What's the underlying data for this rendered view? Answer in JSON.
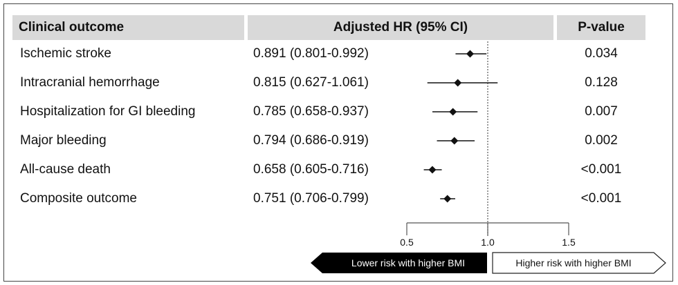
{
  "table": {
    "headers": {
      "outcome": "Clinical outcome",
      "hr": "Adjusted HR (95% CI)",
      "p": "P-value"
    },
    "rows": [
      {
        "label": "Ischemic stroke",
        "hr_text": "0.891 (0.801-0.992)",
        "p": "0.034"
      },
      {
        "label": "Intracranial hemorrhage",
        "hr_text": "0.815 (0.627-1.061)",
        "p": "0.128"
      },
      {
        "label": "Hospitalization for GI bleeding",
        "hr_text": "0.785 (0.658-0.937)",
        "p": "0.007"
      },
      {
        "label": "Major bleeding",
        "hr_text": "0.794 (0.686-0.919)",
        "p": "0.002"
      },
      {
        "label": "All-cause death",
        "hr_text": "0.658 (0.605-0.716)",
        "p": "<0.001"
      },
      {
        "label": "Composite outcome",
        "hr_text": "0.751 (0.706-0.799)",
        "p": "<0.001"
      }
    ]
  },
  "chart_data": {
    "type": "forest",
    "title": "Adjusted HR (95% CI)",
    "categories": [
      "Ischemic stroke",
      "Intracranial hemorrhage",
      "Hospitalization for GI bleeding",
      "Major bleeding",
      "All-cause death",
      "Composite outcome"
    ],
    "hr": [
      0.891,
      0.815,
      0.785,
      0.794,
      0.658,
      0.751
    ],
    "ci_low": [
      0.801,
      0.627,
      0.658,
      0.686,
      0.605,
      0.706
    ],
    "ci_high": [
      0.992,
      1.061,
      0.937,
      0.919,
      0.716,
      0.799
    ],
    "reference_line": 1.0,
    "xlim": [
      0.5,
      1.5
    ],
    "xticks": [
      0.5,
      1.0,
      1.5
    ],
    "xtick_labels": [
      "0.5",
      "1.0",
      "1.5"
    ],
    "left_annotation": "Lower risk with higher BMI",
    "right_annotation": "Higher risk with higher BMI"
  }
}
